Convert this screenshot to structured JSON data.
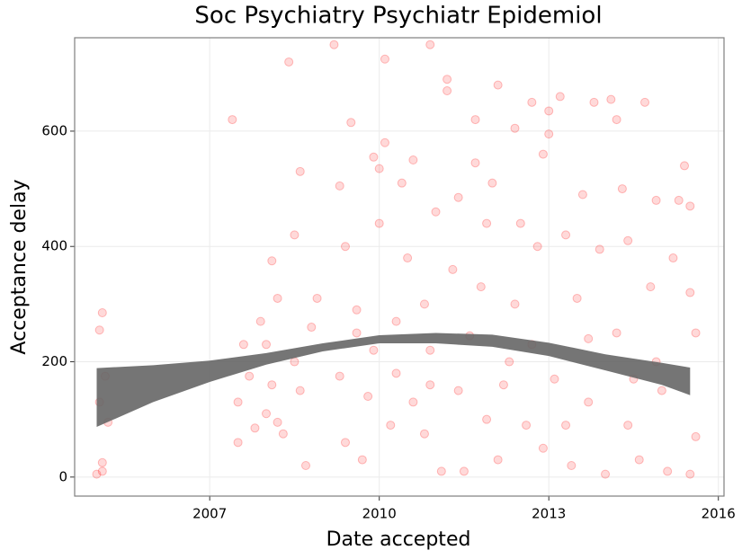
{
  "chart_data": {
    "type": "scatter",
    "title": "Soc Psychiatry Psychiatr Epidemiol",
    "x_label": "Date accepted",
    "y_label": "Acceptance delay",
    "xlim": [
      2004.61,
      2016.1
    ],
    "ylim": [
      -33,
      762
    ],
    "xticks": [
      2007,
      2010,
      2013,
      2016
    ],
    "yticks": [
      0,
      200,
      400,
      600
    ],
    "grid": true,
    "point_color": "#ff0000",
    "x": [
      2005.0,
      2005.05,
      2005.1,
      2005.05,
      2005.15,
      2005.1,
      2005.2,
      2005.1,
      2007.4,
      2007.5,
      2007.5,
      2007.6,
      2007.8,
      2007.9,
      2008.0,
      2008.1,
      2008.1,
      2008.2,
      2008.3,
      2008.4,
      2008.5,
      2008.6,
      2008.6,
      2008.7,
      2008.8,
      2008.9,
      2008.5,
      2008.2,
      2007.7,
      2008.0,
      2009.2,
      2009.3,
      2009.4,
      2009.5,
      2009.3,
      2009.4,
      2009.6,
      2009.8,
      2009.9,
      2010.0,
      2009.7,
      2009.9,
      2010.0,
      2010.1,
      2010.1,
      2010.2,
      2010.3,
      2010.4,
      2010.5,
      2010.6,
      2010.6,
      2010.8,
      2010.8,
      2010.9,
      2010.9,
      2011.0,
      2011.1,
      2011.2,
      2011.2,
      2011.3,
      2011.4,
      2011.4,
      2011.5,
      2011.6,
      2011.7,
      2011.7,
      2011.9,
      2011.9,
      2012.0,
      2012.1,
      2012.1,
      2012.3,
      2012.4,
      2012.4,
      2012.5,
      2012.6,
      2012.7,
      2012.8,
      2012.9,
      2012.9,
      2013.0,
      2013.0,
      2013.1,
      2013.2,
      2013.3,
      2013.4,
      2013.5,
      2013.6,
      2013.7,
      2013.8,
      2013.9,
      2014.0,
      2014.1,
      2014.2,
      2014.2,
      2014.3,
      2014.4,
      2014.4,
      2014.6,
      2014.7,
      2014.8,
      2014.9,
      2015.0,
      2015.1,
      2015.2,
      2015.3,
      2015.4,
      2015.5,
      2015.5,
      2015.6,
      2015.6,
      2015.5,
      2014.9,
      2013.7,
      2012.2,
      2010.3,
      2009.6,
      2011.8,
      2013.3,
      2014.5,
      2012.7,
      2010.9
    ],
    "y": [
      5,
      255,
      285,
      130,
      175,
      10,
      95,
      25,
      620,
      130,
      60,
      230,
      85,
      270,
      110,
      375,
      160,
      310,
      75,
      720,
      420,
      530,
      150,
      20,
      260,
      310,
      200,
      95,
      175,
      230,
      750,
      505,
      400,
      615,
      175,
      60,
      290,
      140,
      555,
      535,
      30,
      220,
      440,
      725,
      580,
      90,
      270,
      510,
      380,
      130,
      550,
      300,
      75,
      750,
      220,
      460,
      10,
      690,
      670,
      360,
      150,
      485,
      10,
      245,
      545,
      620,
      100,
      440,
      510,
      30,
      680,
      200,
      605,
      300,
      440,
      90,
      650,
      400,
      560,
      50,
      635,
      595,
      170,
      660,
      420,
      20,
      310,
      490,
      130,
      650,
      395,
      5,
      655,
      620,
      250,
      500,
      410,
      90,
      30,
      650,
      330,
      480,
      150,
      10,
      380,
      480,
      540,
      470,
      320,
      250,
      70,
      5,
      200,
      240,
      160,
      180,
      250,
      330,
      90,
      170,
      230,
      160
    ],
    "ribbon": {
      "color": "#666666",
      "x": [
        2005.0,
        2006.0,
        2007.0,
        2008.0,
        2009.0,
        2010.0,
        2011.0,
        2012.0,
        2013.0,
        2014.0,
        2015.0,
        2015.5
      ],
      "lower": [
        87,
        130,
        165,
        195,
        218,
        232,
        232,
        226,
        210,
        185,
        160,
        142
      ],
      "upper": [
        189,
        194,
        202,
        215,
        232,
        246,
        250,
        247,
        233,
        213,
        198,
        190
      ]
    }
  }
}
